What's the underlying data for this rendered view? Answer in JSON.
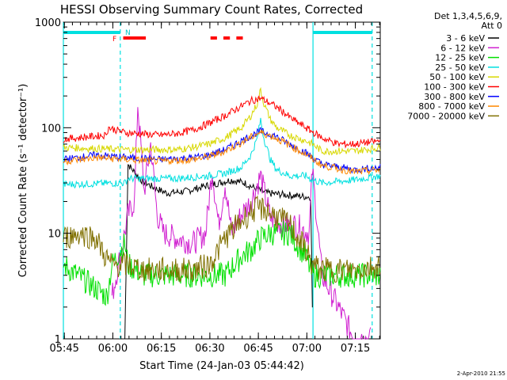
{
  "chart_data": {
    "type": "line",
    "title": "HESSI Observing Summary Count Rates, Corrected",
    "xlabel": "Start Time (24-Jan-03 05:44:42)",
    "ylabel": "Corrected Count Rate (s⁻¹ detector⁻¹)",
    "y_scale": "log",
    "ylim": [
      1,
      1000
    ],
    "xlim_minutes": [
      0,
      98
    ],
    "x_ticks": [
      "05:45",
      "06:00",
      "06:15",
      "06:30",
      "06:45",
      "07:00",
      "07:15"
    ],
    "y_ticks": [
      "1",
      "10",
      "100",
      "1000"
    ],
    "footer_date": "2-Apr-2010 21:55",
    "legend_header": [
      "Det 1,3,4,5,6,9,",
      "Att 0"
    ],
    "flags": {
      "n_label": "N",
      "f_label": "F"
    },
    "series": [
      {
        "name": "3 - 6 keV",
        "color": "#000000",
        "x": [
          19,
          20,
          24,
          28,
          32,
          38,
          44,
          48,
          52,
          56,
          60,
          63,
          76.5,
          77
        ],
        "y": [
          1,
          45,
          32,
          27,
          24,
          25,
          28,
          30,
          32,
          30,
          26,
          24,
          22,
          2
        ]
      },
      {
        "name": "6 - 12 keV",
        "color": "#d020d0",
        "x": [
          15,
          17,
          18,
          20,
          22,
          23,
          25,
          27,
          29,
          31,
          35,
          40,
          44,
          46,
          48,
          50,
          52,
          55,
          58,
          61,
          64,
          68,
          72,
          76,
          77,
          80,
          85,
          90,
          95
        ],
        "y": [
          2.5,
          5,
          7,
          15,
          20,
          170,
          25,
          70,
          15,
          10,
          9,
          8,
          10,
          40,
          12,
          30,
          10,
          15,
          20,
          35,
          14,
          12,
          12,
          10,
          40,
          4,
          2,
          1,
          1
        ]
      },
      {
        "name": "12 - 25 keV",
        "color": "#00e000",
        "x": [
          0,
          10,
          13.5,
          15,
          19,
          20,
          25,
          30,
          40,
          45,
          50,
          55,
          58,
          61,
          64,
          70,
          75,
          77,
          80,
          90,
          98
        ],
        "y": [
          5,
          3,
          2.5,
          5,
          8,
          5,
          4,
          4,
          4,
          4,
          4,
          6,
          7,
          9,
          10,
          10,
          6,
          4,
          4,
          4,
          4
        ]
      },
      {
        "name": "25 - 50 keV",
        "color": "#00e0e0",
        "x": [
          0,
          19,
          20,
          25,
          30,
          35,
          40,
          45,
          50,
          55,
          58,
          60,
          61,
          62,
          64,
          66,
          70,
          75,
          77,
          80,
          90,
          98
        ],
        "y": [
          29,
          30,
          33,
          33,
          33,
          33,
          34,
          35,
          37,
          42,
          55,
          80,
          120,
          80,
          50,
          40,
          35,
          35,
          32,
          30,
          32,
          35
        ]
      },
      {
        "name": "50 - 100 keV",
        "color": "#d8d800",
        "x": [
          0,
          19,
          25,
          30,
          35,
          40,
          45,
          50,
          55,
          58,
          60,
          61,
          62,
          64,
          66,
          70,
          75,
          77,
          80,
          90,
          98
        ],
        "y": [
          65,
          62,
          62,
          62,
          62,
          65,
          70,
          80,
          100,
          130,
          170,
          230,
          170,
          120,
          100,
          85,
          75,
          70,
          60,
          60,
          65
        ]
      },
      {
        "name": "100 - 300 keV",
        "color": "#ff0000",
        "x": [
          0,
          13,
          14,
          19,
          25,
          30,
          35,
          40,
          45,
          50,
          55,
          58,
          61,
          64,
          67,
          70,
          75,
          80,
          85,
          90,
          98
        ],
        "y": [
          78,
          85,
          100,
          90,
          87,
          85,
          88,
          95,
          110,
          130,
          160,
          180,
          190,
          170,
          150,
          125,
          100,
          80,
          70,
          70,
          75
        ]
      },
      {
        "name": "300 - 800 keV",
        "color": "#0000ff",
        "x": [
          0,
          10,
          20,
          30,
          40,
          45,
          50,
          55,
          60,
          61,
          62,
          65,
          70,
          75,
          80,
          90,
          98
        ],
        "y": [
          50,
          55,
          52,
          50,
          52,
          55,
          62,
          75,
          90,
          93,
          90,
          85,
          70,
          58,
          45,
          40,
          42
        ]
      },
      {
        "name": "800 - 7000 keV",
        "color": "#ff8800",
        "x": [
          0,
          10,
          20,
          30,
          40,
          45,
          50,
          55,
          60,
          61,
          62,
          65,
          70,
          75,
          80,
          90,
          98
        ],
        "y": [
          48,
          52,
          50,
          48,
          50,
          53,
          60,
          72,
          88,
          90,
          88,
          82,
          68,
          56,
          44,
          38,
          40
        ]
      },
      {
        "name": "7000 - 20000 keV",
        "color": "#807000",
        "x": [
          0,
          5,
          10,
          13,
          15,
          20,
          25,
          30,
          40,
          45,
          48,
          50,
          55,
          58,
          60,
          62,
          65,
          70,
          75,
          77,
          80,
          85,
          90,
          98
        ],
        "y": [
          9,
          10,
          9,
          6,
          5,
          5,
          4.5,
          4.5,
          4.5,
          5,
          7,
          9,
          13,
          16,
          17,
          17,
          15,
          12,
          7,
          5,
          4.5,
          4.5,
          4.5,
          5
        ]
      }
    ],
    "vertical_markers": [
      {
        "x": 0,
        "style": "solid",
        "color": "#00e0e0"
      },
      {
        "x": 17.6,
        "style": "dashed",
        "color": "#00e0e0"
      },
      {
        "x": 77.2,
        "style": "solid",
        "color": "#00e0e0"
      },
      {
        "x": 95.5,
        "style": "dashed",
        "color": "#00e0e0"
      }
    ],
    "top_bars": [
      {
        "x1": 0,
        "x2": 17.6,
        "color": "#00e0e0"
      },
      {
        "x1": 77.2,
        "x2": 95.5,
        "color": "#00e0e0"
      },
      {
        "x1": 18.5,
        "x2": 25.5,
        "color": "#ff0000"
      },
      {
        "x1": 45.5,
        "x2": 47.5,
        "color": "#ff0000"
      },
      {
        "x1": 49.5,
        "x2": 51.5,
        "color": "#ff0000"
      },
      {
        "x1": 53.5,
        "x2": 55.5,
        "color": "#ff0000"
      }
    ]
  }
}
